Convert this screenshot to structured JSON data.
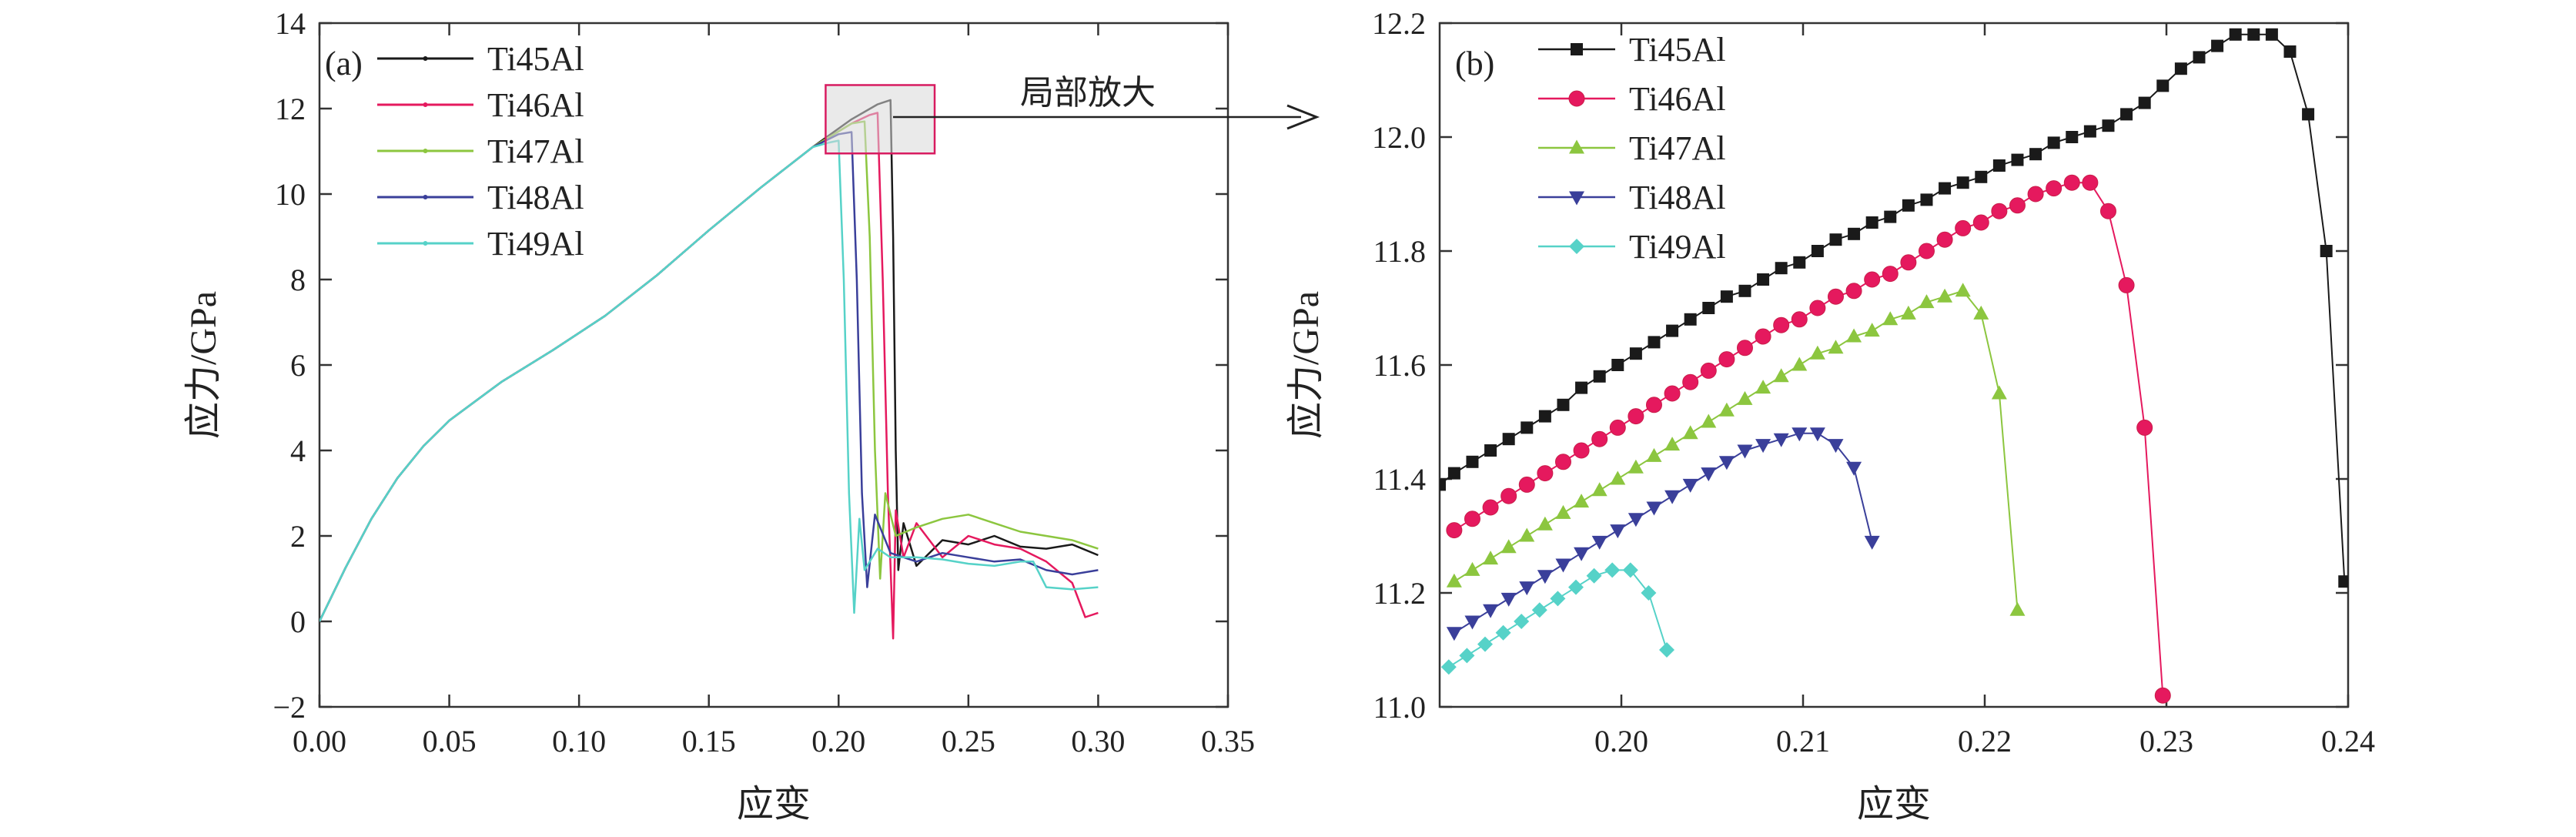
{
  "figure": {
    "zoom_label": "局部放大"
  },
  "chart_data": [
    {
      "type": "line",
      "panel": "(a)",
      "xlabel": "应变",
      "ylabel": "应力/GPa",
      "xlim": [
        0,
        0.35
      ],
      "ylim": [
        -2,
        14
      ],
      "xticks": [
        0,
        0.05,
        0.1,
        0.15,
        0.2,
        0.25,
        0.3,
        0.35
      ],
      "xtick_labels": [
        "0.00",
        "0.05",
        "0.10",
        "0.15",
        "0.20",
        "0.25",
        "0.30",
        "0.35"
      ],
      "yticks": [
        -2,
        0,
        2,
        4,
        6,
        8,
        10,
        12,
        14
      ],
      "ytick_labels": [
        "−2",
        "0",
        "2",
        "4",
        "6",
        "8",
        "10",
        "12",
        "14"
      ],
      "grid": false,
      "legend": "top-left",
      "zoom_box": {
        "x": [
          0.195,
          0.237
        ],
        "y": [
          10.95,
          12.55
        ]
      },
      "series": [
        {
          "name": "Ti45Al",
          "color": "#1a1a1a",
          "x": [
            0,
            0.01,
            0.02,
            0.03,
            0.04,
            0.05,
            0.07,
            0.09,
            0.11,
            0.13,
            0.15,
            0.17,
            0.19,
            0.205,
            0.215,
            0.22,
            0.221,
            0.222,
            0.223,
            0.225,
            0.23,
            0.24,
            0.25,
            0.26,
            0.27,
            0.28,
            0.29,
            0.3
          ],
          "y": [
            0,
            1.25,
            2.4,
            3.35,
            4.1,
            4.7,
            5.6,
            6.35,
            7.15,
            8.1,
            9.15,
            10.15,
            11.1,
            11.75,
            12.1,
            12.2,
            9.0,
            4.0,
            1.2,
            2.3,
            1.3,
            1.9,
            1.8,
            2.0,
            1.75,
            1.7,
            1.8,
            1.55
          ]
        },
        {
          "name": "Ti46Al",
          "color": "#e5195e",
          "x": [
            0,
            0.01,
            0.02,
            0.03,
            0.04,
            0.05,
            0.07,
            0.09,
            0.11,
            0.13,
            0.15,
            0.17,
            0.19,
            0.205,
            0.212,
            0.215,
            0.217,
            0.219,
            0.221,
            0.222,
            0.225,
            0.23,
            0.24,
            0.25,
            0.26,
            0.27,
            0.28,
            0.29,
            0.295,
            0.3
          ],
          "y": [
            0,
            1.25,
            2.4,
            3.35,
            4.1,
            4.7,
            5.6,
            6.35,
            7.15,
            8.1,
            9.15,
            10.15,
            11.1,
            11.65,
            11.85,
            11.9,
            8.0,
            3.0,
            -0.4,
            2.6,
            1.5,
            2.3,
            1.5,
            2.0,
            1.8,
            1.7,
            1.4,
            0.9,
            0.1,
            0.2
          ]
        },
        {
          "name": "Ti47Al",
          "color": "#8cc63f",
          "x": [
            0,
            0.01,
            0.02,
            0.03,
            0.04,
            0.05,
            0.07,
            0.09,
            0.11,
            0.13,
            0.15,
            0.17,
            0.19,
            0.205,
            0.21,
            0.212,
            0.214,
            0.216,
            0.218,
            0.222,
            0.23,
            0.24,
            0.25,
            0.26,
            0.27,
            0.28,
            0.29,
            0.3
          ],
          "y": [
            0,
            1.25,
            2.4,
            3.35,
            4.1,
            4.7,
            5.6,
            6.35,
            7.15,
            8.1,
            9.15,
            10.15,
            11.1,
            11.65,
            11.7,
            9.0,
            4.0,
            1.0,
            3.0,
            2.0,
            2.2,
            2.4,
            2.5,
            2.3,
            2.1,
            2.0,
            1.9,
            1.7
          ]
        },
        {
          "name": "Ti48Al",
          "color": "#3a3f9a",
          "x": [
            0,
            0.01,
            0.02,
            0.03,
            0.04,
            0.05,
            0.07,
            0.09,
            0.11,
            0.13,
            0.15,
            0.17,
            0.19,
            0.2,
            0.205,
            0.207,
            0.209,
            0.211,
            0.214,
            0.22,
            0.23,
            0.24,
            0.25,
            0.26,
            0.27,
            0.28,
            0.29,
            0.3
          ],
          "y": [
            0,
            1.25,
            2.4,
            3.35,
            4.1,
            4.7,
            5.6,
            6.35,
            7.15,
            8.1,
            9.15,
            10.15,
            11.1,
            11.4,
            11.45,
            8.0,
            3.0,
            0.8,
            2.5,
            1.6,
            1.4,
            1.6,
            1.5,
            1.4,
            1.45,
            1.2,
            1.1,
            1.2
          ]
        },
        {
          "name": "Ti49Al",
          "color": "#56d2c8",
          "x": [
            0,
            0.01,
            0.02,
            0.03,
            0.04,
            0.05,
            0.07,
            0.09,
            0.11,
            0.13,
            0.15,
            0.17,
            0.19,
            0.196,
            0.2,
            0.202,
            0.204,
            0.206,
            0.208,
            0.21,
            0.215,
            0.22,
            0.23,
            0.24,
            0.25,
            0.26,
            0.27,
            0.275,
            0.28,
            0.29,
            0.3
          ],
          "y": [
            0,
            1.25,
            2.4,
            3.35,
            4.1,
            4.7,
            5.6,
            6.35,
            7.15,
            8.1,
            9.15,
            10.15,
            11.1,
            11.2,
            11.25,
            8.0,
            3.0,
            0.2,
            2.4,
            1.2,
            1.7,
            1.5,
            1.5,
            1.45,
            1.35,
            1.3,
            1.4,
            1.4,
            0.8,
            0.75,
            0.8
          ]
        }
      ]
    },
    {
      "type": "line",
      "panel": "(b)",
      "xlabel": "应变",
      "ylabel": "应力/GPa",
      "xlim": [
        0.19,
        0.24
      ],
      "ylim": [
        11.0,
        12.2
      ],
      "xticks": [
        0.2,
        0.21,
        0.22,
        0.23,
        0.24
      ],
      "xtick_labels": [
        "0.20",
        "0.21",
        "0.22",
        "0.23",
        "0.24"
      ],
      "yticks": [
        11.0,
        11.2,
        11.4,
        11.6,
        11.8,
        12.0,
        12.2
      ],
      "ytick_labels": [
        "11.0",
        "11.2",
        "11.4",
        "11.6",
        "11.8",
        "12.0",
        "12.2"
      ],
      "grid": false,
      "legend": "top-left",
      "series": [
        {
          "name": "Ti45Al",
          "color": "#1a1a1a",
          "marker": "square",
          "x": [
            0.19,
            0.1908,
            0.1918,
            0.1928,
            0.1938,
            0.1948,
            0.1958,
            0.1968,
            0.1978,
            0.1988,
            0.1998,
            0.2008,
            0.2018,
            0.2028,
            0.2038,
            0.2048,
            0.2058,
            0.2068,
            0.2078,
            0.2088,
            0.2098,
            0.2108,
            0.2118,
            0.2128,
            0.2138,
            0.2148,
            0.2158,
            0.2168,
            0.2178,
            0.2188,
            0.2198,
            0.2208,
            0.2218,
            0.2228,
            0.2238,
            0.2248,
            0.2258,
            0.2268,
            0.2278,
            0.2288,
            0.2298,
            0.2308,
            0.2318,
            0.2328,
            0.2338,
            0.2348,
            0.2358,
            0.2368,
            0.2378,
            0.2388,
            0.2398
          ],
          "y": [
            11.39,
            11.41,
            11.43,
            11.45,
            11.47,
            11.49,
            11.51,
            11.53,
            11.56,
            11.58,
            11.6,
            11.62,
            11.64,
            11.66,
            11.68,
            11.7,
            11.72,
            11.73,
            11.75,
            11.77,
            11.78,
            11.8,
            11.82,
            11.83,
            11.85,
            11.86,
            11.88,
            11.89,
            11.91,
            11.92,
            11.93,
            11.95,
            11.96,
            11.97,
            11.99,
            12.0,
            12.01,
            12.02,
            12.04,
            12.06,
            12.09,
            12.12,
            12.14,
            12.16,
            12.18,
            12.18,
            12.18,
            12.15,
            12.04,
            11.8,
            11.22
          ]
        },
        {
          "name": "Ti46Al",
          "color": "#e5195e",
          "marker": "circle",
          "x": [
            0.1908,
            0.1918,
            0.1928,
            0.1938,
            0.1948,
            0.1958,
            0.1968,
            0.1978,
            0.1988,
            0.1998,
            0.2008,
            0.2018,
            0.2028,
            0.2038,
            0.2048,
            0.2058,
            0.2068,
            0.2078,
            0.2088,
            0.2098,
            0.2108,
            0.2118,
            0.2128,
            0.2138,
            0.2148,
            0.2158,
            0.2168,
            0.2178,
            0.2188,
            0.2198,
            0.2208,
            0.2218,
            0.2228,
            0.2238,
            0.2248,
            0.2258,
            0.2268,
            0.2278,
            0.2288,
            0.2298
          ],
          "y": [
            11.31,
            11.33,
            11.35,
            11.37,
            11.39,
            11.41,
            11.43,
            11.45,
            11.47,
            11.49,
            11.51,
            11.53,
            11.55,
            11.57,
            11.59,
            11.61,
            11.63,
            11.65,
            11.67,
            11.68,
            11.7,
            11.72,
            11.73,
            11.75,
            11.76,
            11.78,
            11.8,
            11.82,
            11.84,
            11.85,
            11.87,
            11.88,
            11.9,
            11.91,
            11.92,
            11.92,
            11.87,
            11.74,
            11.49,
            11.02
          ]
        },
        {
          "name": "Ti47Al",
          "color": "#8cc63f",
          "marker": "triangle-up",
          "x": [
            0.1908,
            0.1918,
            0.1928,
            0.1938,
            0.1948,
            0.1958,
            0.1968,
            0.1978,
            0.1988,
            0.1998,
            0.2008,
            0.2018,
            0.2028,
            0.2038,
            0.2048,
            0.2058,
            0.2068,
            0.2078,
            0.2088,
            0.2098,
            0.2108,
            0.2118,
            0.2128,
            0.2138,
            0.2148,
            0.2158,
            0.2168,
            0.2178,
            0.2188,
            0.2198,
            0.2208,
            0.2218
          ],
          "y": [
            11.22,
            11.24,
            11.26,
            11.28,
            11.3,
            11.32,
            11.34,
            11.36,
            11.38,
            11.4,
            11.42,
            11.44,
            11.46,
            11.48,
            11.5,
            11.52,
            11.54,
            11.56,
            11.58,
            11.6,
            11.62,
            11.63,
            11.65,
            11.66,
            11.68,
            11.69,
            11.71,
            11.72,
            11.73,
            11.69,
            11.55,
            11.17
          ]
        },
        {
          "name": "Ti48Al",
          "color": "#3a3f9a",
          "marker": "triangle-down",
          "x": [
            0.1908,
            0.1918,
            0.1928,
            0.1938,
            0.1948,
            0.1958,
            0.1968,
            0.1978,
            0.1988,
            0.1998,
            0.2008,
            0.2018,
            0.2028,
            0.2038,
            0.2048,
            0.2058,
            0.2068,
            0.2078,
            0.2088,
            0.2098,
            0.2108,
            0.2118,
            0.2128,
            0.2138
          ],
          "y": [
            11.13,
            11.15,
            11.17,
            11.19,
            11.21,
            11.23,
            11.25,
            11.27,
            11.29,
            11.31,
            11.33,
            11.35,
            11.37,
            11.39,
            11.41,
            11.43,
            11.45,
            11.46,
            11.47,
            11.48,
            11.48,
            11.46,
            11.42,
            11.29
          ]
        },
        {
          "name": "Ti49Al",
          "color": "#56d2c8",
          "marker": "diamond",
          "x": [
            0.1905,
            0.1915,
            0.1925,
            0.1935,
            0.1945,
            0.1955,
            0.1965,
            0.1975,
            0.1985,
            0.1995,
            0.2005,
            0.2015,
            0.2025
          ],
          "y": [
            11.07,
            11.09,
            11.11,
            11.13,
            11.15,
            11.17,
            11.19,
            11.21,
            11.23,
            11.24,
            11.24,
            11.2,
            11.1
          ]
        }
      ]
    }
  ]
}
